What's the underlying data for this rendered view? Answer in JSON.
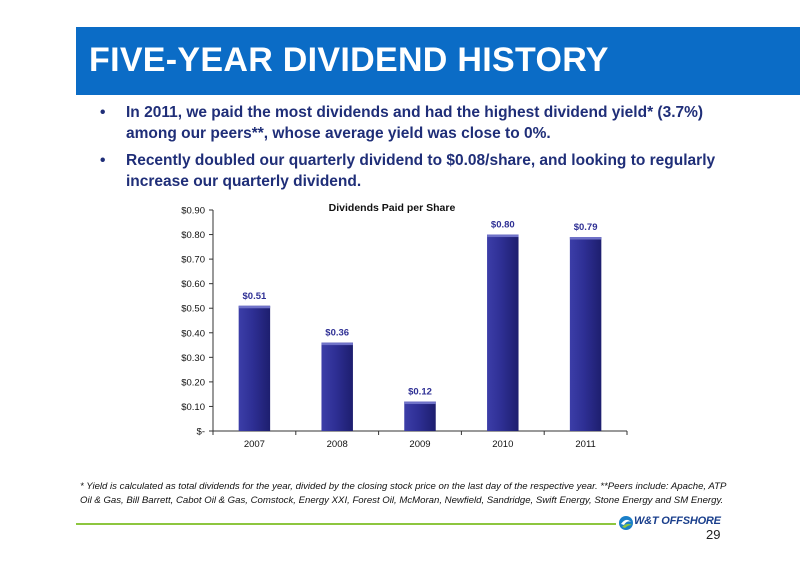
{
  "header": {
    "title": "FIVE-YEAR DIVIDEND HISTORY"
  },
  "bullets": [
    "In 2011, we paid the most dividends and had the highest dividend yield* (3.7%) among our peers**, whose average yield was close to 0%.",
    "Recently doubled our quarterly dividend to $0.08/share, and looking to regularly increase our quarterly dividend."
  ],
  "bullet_glyph": "•",
  "chart_data": {
    "type": "bar",
    "title": "Dividends Paid per Share",
    "categories": [
      "2007",
      "2008",
      "2009",
      "2010",
      "2011"
    ],
    "values": [
      0.51,
      0.36,
      0.12,
      0.8,
      0.79
    ],
    "data_labels": [
      "$0.51",
      "$0.36",
      "$0.12",
      "$0.80",
      "$0.79"
    ],
    "ylim": [
      0,
      0.9
    ],
    "yticks": [
      0,
      0.1,
      0.2,
      0.3,
      0.4,
      0.5,
      0.6,
      0.7,
      0.8,
      0.9
    ],
    "ytick_labels": [
      "$-",
      "$0.10",
      "$0.20",
      "$0.30",
      "$0.40",
      "$0.50",
      "$0.60",
      "$0.70",
      "$0.80",
      "$0.90"
    ],
    "xlabel": "",
    "ylabel": "",
    "grid": false,
    "colors": {
      "bar": "#2e2f94",
      "bar_highlight": "#6f72c8",
      "label": "#2e2f94"
    }
  },
  "footnote": "* Yield is calculated as total dividends for the year, divided by the closing stock price on the last day of the respective year.  **Peers include: Apache, ATP Oil & Gas, Bill Barrett, Cabot Oil & Gas, Comstock, Energy XXI, Forest Oil, McMoran, Newfield, Sandridge, Swift Energy, Stone Energy and SM Energy.",
  "logo": {
    "text": "W&T OFFSHORE",
    "icon": "wt-swirl-logo"
  },
  "page_number": "29",
  "colors": {
    "header_bg": "#0b6cc6",
    "text_navy": "#1f2e78",
    "rule_green": "#8dc63f"
  }
}
